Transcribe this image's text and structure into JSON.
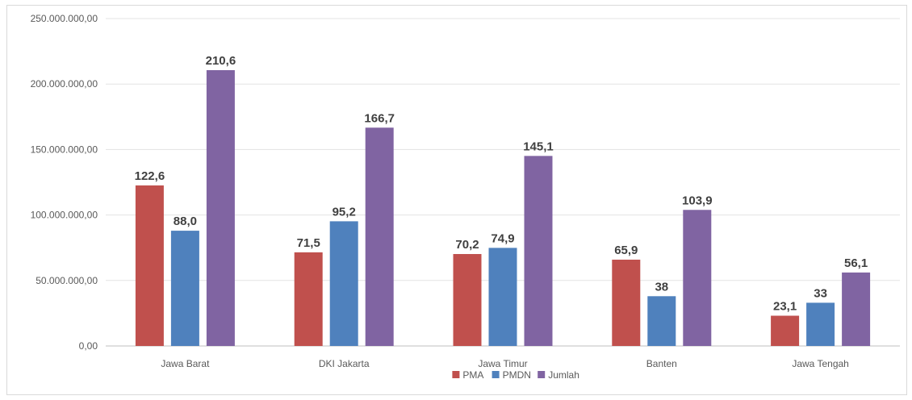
{
  "chart_data": {
    "type": "bar",
    "title": "",
    "xlabel": "",
    "ylabel": "",
    "categories": [
      "Jawa Barat",
      "DKI Jakarta",
      "Jawa Timur",
      "Banten",
      "Jawa Tengah"
    ],
    "series": [
      {
        "name": "PMA",
        "color": "#c0504d",
        "values": [
          122.6,
          71.5,
          70.2,
          65.9,
          23.1
        ],
        "labels": [
          "122,6",
          "71,5",
          "70,2",
          "65,9",
          "23,1"
        ]
      },
      {
        "name": "PMDN",
        "color": "#4f81bd",
        "values": [
          88.0,
          95.2,
          74.9,
          38,
          33
        ],
        "labels": [
          "88,0",
          "95,2",
          "74,9",
          "38",
          "33"
        ]
      },
      {
        "name": "Jumlah",
        "color": "#8064a2",
        "values": [
          210.6,
          166.7,
          145.1,
          103.9,
          56.1
        ],
        "labels": [
          "210,6",
          "166,7",
          "145,1",
          "103,9",
          "56,1"
        ]
      }
    ],
    "y_ticks": [
      0,
      50,
      100,
      150,
      200,
      250
    ],
    "y_tick_labels": [
      "0,00",
      "50.000.000,00",
      "100.000.000,00",
      "150.000.000,00",
      "200.000.000,00",
      "250.000.000,00"
    ],
    "ylim": [
      0,
      250
    ],
    "grid": true,
    "legend_position": "bottom"
  }
}
